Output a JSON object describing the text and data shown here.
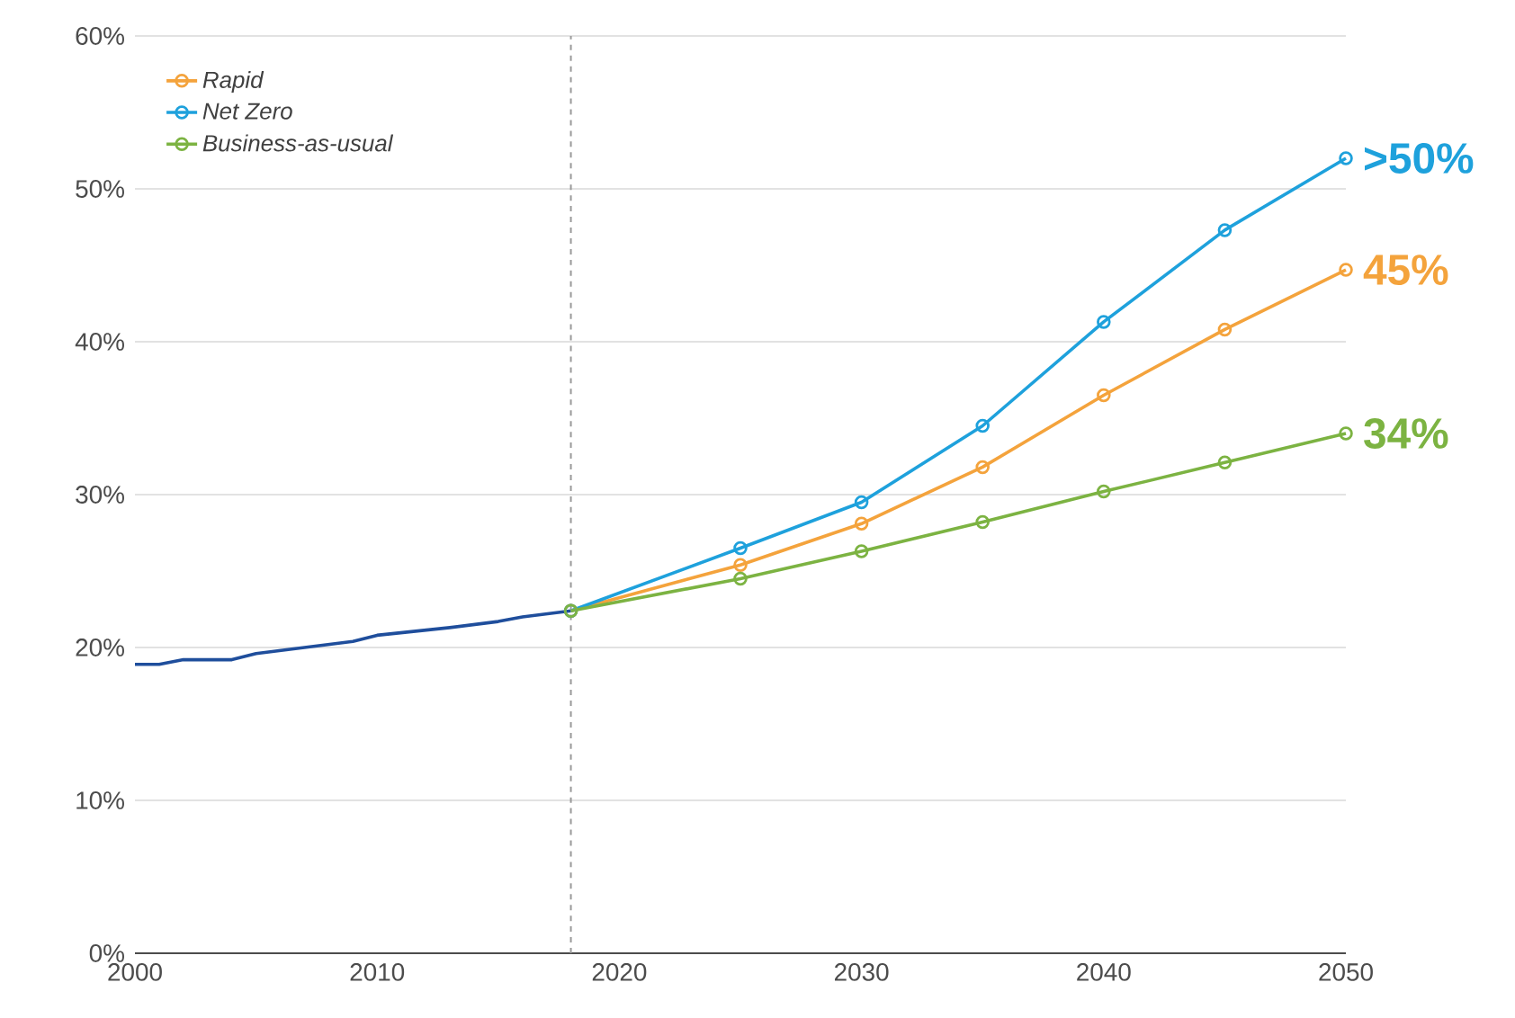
{
  "chart_data": {
    "type": "line",
    "xlim": [
      2000,
      2050
    ],
    "ylim": [
      0,
      60
    ],
    "xticks": [
      2000,
      2010,
      2020,
      2030,
      2040,
      2050
    ],
    "yticks": [
      {
        "value": 0,
        "label": "0%"
      },
      {
        "value": 10,
        "label": "10%"
      },
      {
        "value": 20,
        "label": "20%"
      },
      {
        "value": 30,
        "label": "30%"
      },
      {
        "value": 40,
        "label": "40%"
      },
      {
        "value": 50,
        "label": "50%"
      },
      {
        "value": 60,
        "label": "60%"
      }
    ],
    "grid": "y",
    "legend": "top left",
    "marker": "circle",
    "line_style": "solid",
    "series": [
      {
        "color": "#1f4e9c",
        "marker": "none",
        "x": [
          2000,
          2001,
          2002,
          2004,
          2005,
          2007,
          2009,
          2010,
          2013,
          2015,
          2016,
          2018
        ],
        "values": [
          18.9,
          18.9,
          19.2,
          19.2,
          19.6,
          20.0,
          20.4,
          20.8,
          21.3,
          21.7,
          22.0,
          22.4
        ]
      },
      {
        "name": "Rapid",
        "color": "#f4a33c",
        "x": [
          2018,
          2025,
          2030,
          2035,
          2040,
          2045,
          2050
        ],
        "values": [
          22.4,
          25.4,
          28.1,
          31.8,
          36.5,
          40.8,
          44.7
        ]
      },
      {
        "name": "Net Zero",
        "color": "#1ea1dc",
        "x": [
          2018,
          2025,
          2030,
          2035,
          2040,
          2045,
          2050
        ],
        "values": [
          22.4,
          26.5,
          29.5,
          34.5,
          41.3,
          47.3,
          52.0
        ]
      },
      {
        "name": "Business-as-usual",
        "color": "#7cb342",
        "x": [
          2018,
          2025,
          2030,
          2035,
          2040,
          2045,
          2050
        ],
        "values": [
          22.4,
          24.5,
          26.3,
          28.2,
          30.2,
          32.1,
          34.0
        ]
      }
    ],
    "ref_lines": [
      {
        "axis": "x",
        "value": 2018,
        "color": "#999999",
        "line_style": "dashed"
      }
    ],
    "annotations": [
      ">50%",
      "45%",
      "34%"
    ]
  }
}
